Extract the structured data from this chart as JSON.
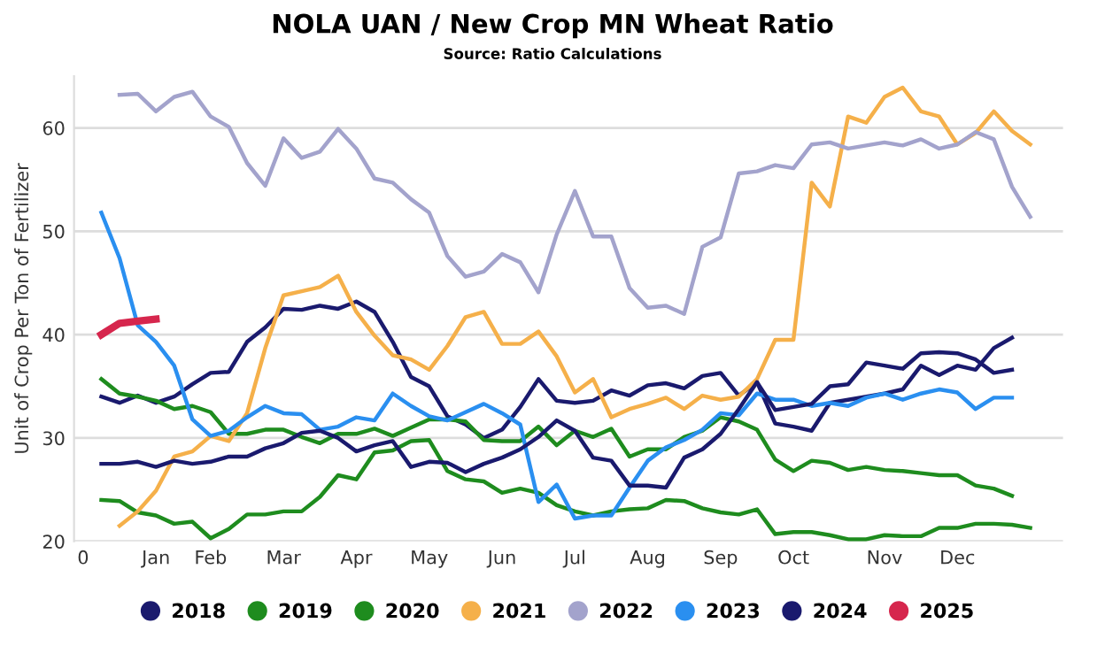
{
  "chart_data": {
    "type": "line",
    "title": "NOLA UAN / New Crop MN Wheat Ratio",
    "subtitle": "Source: Ratio Calculations",
    "ylabel": "Unit of Crop Per Ton of Fertilizer",
    "categories": [
      "0",
      null,
      null,
      null,
      "Jan",
      null,
      null,
      "Feb",
      null,
      null,
      null,
      "Mar",
      null,
      null,
      null,
      "Apr",
      null,
      null,
      null,
      "May",
      null,
      null,
      null,
      "Jun",
      null,
      null,
      null,
      "Jul",
      null,
      null,
      null,
      "Aug",
      null,
      null,
      null,
      "Sep",
      null,
      null,
      null,
      "Oct",
      null,
      null,
      null,
      null,
      "Nov",
      null,
      null,
      null,
      "Dec",
      null,
      null,
      null,
      null
    ],
    "ylim": [
      20,
      65
    ],
    "yticks": [
      20,
      30,
      40,
      50,
      60
    ],
    "grid": "y",
    "legend": "bottom",
    "marker": "none",
    "line_style": "solid",
    "series": [
      {
        "name": "2018",
        "color": "#1a1a6e",
        "values": [
          null,
          34,
          33.4,
          34.1,
          33.4,
          34,
          35.2,
          36.3,
          36.4,
          39.3,
          40.7,
          42.5,
          42.4,
          42.8,
          42.5,
          43.2,
          42.2,
          39.3,
          35.9,
          35,
          32.1,
          31.3,
          30,
          30.8,
          33,
          35.7,
          33.6,
          33.4,
          33.6,
          34.6,
          34.1,
          35.1,
          35.3,
          34.8,
          36,
          36.3,
          34.1,
          35.4,
          31.4,
          31.1,
          30.7,
          33.4,
          33.7,
          34,
          34.3,
          34.7,
          37,
          36.1,
          37,
          36.6,
          38.7,
          39.7,
          null
        ]
      },
      {
        "name": "2019",
        "color": "#1e8c1e",
        "values": [
          null,
          35.7,
          34.3,
          34,
          33.6,
          32.8,
          33.1,
          32.5,
          30.4,
          30.4,
          30.8,
          30.8,
          30.1,
          29.5,
          30.4,
          30.4,
          30.9,
          30.2,
          31,
          31.8,
          31.8,
          31.6,
          29.8,
          29.7,
          29.7,
          31.1,
          29.3,
          30.7,
          30.1,
          30.9,
          28.2,
          28.9,
          28.9,
          30.1,
          30.7,
          32,
          31.6,
          30.8,
          27.9,
          26.8,
          27.8,
          27.6,
          26.9,
          27.2,
          26.9,
          26.8,
          26.6,
          26.4,
          26.4,
          25.4,
          25.1,
          24.4,
          null
        ]
      },
      {
        "name": "2020",
        "color": "#1e8c1e",
        "values": [
          null,
          24,
          23.9,
          22.8,
          22.5,
          21.7,
          21.9,
          20.3,
          21.2,
          22.6,
          22.6,
          22.9,
          22.9,
          24.3,
          26.4,
          26,
          28.6,
          28.8,
          29.7,
          29.8,
          26.8,
          26,
          25.8,
          24.7,
          25.1,
          24.7,
          23.5,
          22.9,
          22.5,
          22.9,
          23.1,
          23.2,
          24,
          23.9,
          23.2,
          22.8,
          22.6,
          23.1,
          20.7,
          20.9,
          20.9,
          20.6,
          20.2,
          20.2,
          20.6,
          20.5,
          20.5,
          21.3,
          21.3,
          21.7,
          21.7,
          21.6,
          21.3
        ]
      },
      {
        "name": "2021",
        "color": "#f5b04a",
        "values": [
          null,
          null,
          21.5,
          22.9,
          24.9,
          28.2,
          28.7,
          30.2,
          29.7,
          32.4,
          38.7,
          43.8,
          44.2,
          44.6,
          45.7,
          42.2,
          39.9,
          38,
          37.6,
          36.6,
          38.9,
          41.7,
          42.2,
          39.1,
          39.1,
          40.3,
          37.9,
          34.4,
          35.7,
          32,
          32.8,
          33.3,
          33.9,
          32.8,
          34.1,
          33.7,
          34,
          35.7,
          39.5,
          39.5,
          54.7,
          52.4,
          61.1,
          60.5,
          63,
          63.9,
          61.6,
          61.1,
          58.4,
          59.5,
          61.6,
          59.7,
          58.4
        ]
      },
      {
        "name": "2022",
        "color": "#a3a3cc",
        "values": [
          null,
          null,
          63.2,
          63.3,
          61.6,
          63,
          63.5,
          61.1,
          60.1,
          56.6,
          54.4,
          59,
          57.1,
          57.7,
          59.9,
          58,
          55.1,
          54.7,
          53.1,
          51.8,
          47.6,
          45.6,
          46.1,
          47.8,
          47,
          44.1,
          49.7,
          53.9,
          49.5,
          49.5,
          44.5,
          42.6,
          42.8,
          42,
          48.5,
          49.4,
          55.6,
          55.8,
          56.4,
          56.1,
          58.4,
          58.6,
          58,
          58.3,
          58.6,
          58.3,
          58.9,
          58,
          58.4,
          59.6,
          58.9,
          54.3,
          51.4
        ]
      },
      {
        "name": "2023",
        "color": "#2a8ff0",
        "values": [
          null,
          51.8,
          47.4,
          40.9,
          39.3,
          37,
          31.8,
          30.2,
          30.7,
          32,
          33.1,
          32.4,
          32.3,
          30.8,
          31.1,
          32,
          31.7,
          34.3,
          33.1,
          32.1,
          31.7,
          32.5,
          33.3,
          32.4,
          31.3,
          23.8,
          25.5,
          22.2,
          22.5,
          22.5,
          25.2,
          27.8,
          29.1,
          29.8,
          30.8,
          32.4,
          32.2,
          34.3,
          33.7,
          33.7,
          33.1,
          33.4,
          33.1,
          33.9,
          34.3,
          33.7,
          34.3,
          34.7,
          34.4,
          32.8,
          33.9,
          33.9,
          null
        ]
      },
      {
        "name": "2024",
        "color": "#1a1a6e",
        "values": [
          null,
          27.5,
          27.5,
          27.7,
          27.2,
          27.8,
          27.5,
          27.7,
          28.2,
          28.2,
          29,
          29.5,
          30.5,
          30.7,
          30,
          28.7,
          29.3,
          29.7,
          27.2,
          27.7,
          27.6,
          26.7,
          27.5,
          28.1,
          28.9,
          30.1,
          31.7,
          30.7,
          28.1,
          27.8,
          25.4,
          25.4,
          25.2,
          28.1,
          28.9,
          30.4,
          32.8,
          35.4,
          32.7,
          33,
          33.3,
          35,
          35.2,
          37.3,
          37,
          36.7,
          38.2,
          38.3,
          38.2,
          37.6,
          36.3,
          36.6,
          null
        ]
      },
      {
        "name": "2025",
        "color": "#d6264d",
        "values": [
          null,
          40,
          41.1,
          41.3,
          41.5,
          null,
          null,
          null,
          null,
          null,
          null,
          null,
          null,
          null,
          null,
          null,
          null,
          null,
          null,
          null,
          null,
          null,
          null,
          null,
          null,
          null,
          null,
          null,
          null,
          null,
          null,
          null,
          null,
          null,
          null,
          null,
          null,
          null,
          null,
          null,
          null,
          null,
          null,
          null,
          null,
          null,
          null,
          null,
          null,
          null,
          null,
          null,
          null
        ]
      }
    ]
  }
}
